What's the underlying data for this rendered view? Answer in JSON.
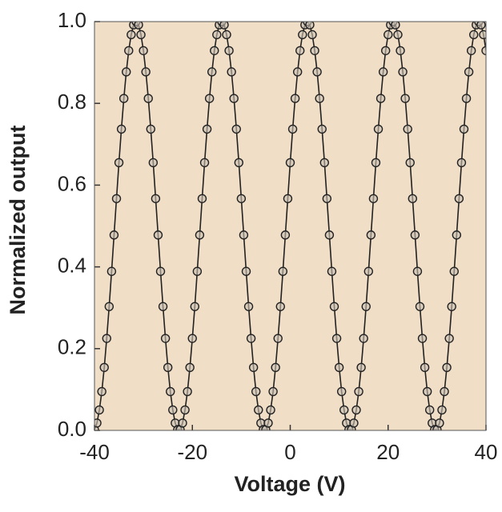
{
  "chart_data": {
    "type": "scatter",
    "xlabel": "Voltage (V)",
    "ylabel": "Normalized output",
    "xlim": [
      -40,
      40
    ],
    "ylim": [
      0,
      1
    ],
    "xticks": [
      -40,
      -20,
      0,
      20,
      40
    ],
    "yticks": [
      {
        "value": 0,
        "label": "0.0"
      },
      0.2,
      0.4,
      0.6,
      0.8,
      {
        "value": 1,
        "label": "1.0"
      }
    ],
    "background": "#f1dec6",
    "series": [
      {
        "color": "#222222",
        "x": [
          -40,
          -39.5,
          -39,
          -38.5,
          -38,
          -37.5,
          -37,
          -36.5,
          -36,
          -35.5,
          -35,
          -34.5,
          -34,
          -33.5,
          -33,
          -32.5,
          -32,
          -31.5,
          -31,
          -30.5,
          -30,
          -29.5,
          -29,
          -28.5,
          -28,
          -27.5,
          -27,
          -26.5,
          -26,
          -25.5,
          -25,
          -24.5,
          -24,
          -23.5,
          -23,
          -22.5,
          -22,
          -21.5,
          -21,
          -20.5,
          -20,
          -19.5,
          -19,
          -18.5,
          -18,
          -17.5,
          -17,
          -16.5,
          -16,
          -15.5,
          -15,
          -14.5,
          -14,
          -13.5,
          -13,
          -12.5,
          -12,
          -11.5,
          -11,
          -10.5,
          -10,
          -9.5,
          -9,
          -8.5,
          -8,
          -7.5,
          -7,
          -6.5,
          -6,
          -5.5,
          -5,
          -4.5,
          -4,
          -3.5,
          -3,
          -2.5,
          -2,
          -1.5,
          -1,
          -0.5,
          0,
          0.5,
          1,
          1.5,
          2,
          2.5,
          3,
          3.5,
          4,
          4.5,
          5,
          5.5,
          6,
          6.5,
          7,
          7.5,
          8,
          8.5,
          9,
          9.5,
          10,
          10.5,
          11,
          11.5,
          12,
          12.5,
          13,
          13.5,
          14,
          14.5,
          15,
          15.5,
          16,
          16.5,
          17,
          17.5,
          18,
          18.5,
          19,
          19.5,
          20,
          20.5,
          21,
          21.5,
          22,
          22.5,
          23,
          23.5,
          24,
          24.5,
          25,
          25.5,
          26,
          26.5,
          27,
          27.5,
          28,
          28.5,
          29,
          29.5,
          30,
          30.5,
          31,
          31.5,
          32,
          32.5,
          33,
          33.5,
          34,
          34.5,
          35,
          35.5,
          36,
          36.5,
          37,
          37.5,
          38,
          38.5,
          39,
          39.5,
          40
        ],
        "values": [
          0.002,
          0.018,
          0.05,
          0.095,
          0.154,
          0.225,
          0.303,
          0.389,
          0.478,
          0.567,
          0.655,
          0.737,
          0.812,
          0.877,
          0.929,
          0.968,
          0.992,
          1,
          0.992,
          0.968,
          0.929,
          0.877,
          0.812,
          0.737,
          0.655,
          0.567,
          0.478,
          0.389,
          0.303,
          0.225,
          0.154,
          0.095,
          0.05,
          0.018,
          0.002,
          0.002,
          0.018,
          0.05,
          0.095,
          0.154,
          0.225,
          0.303,
          0.389,
          0.478,
          0.567,
          0.655,
          0.737,
          0.812,
          0.877,
          0.929,
          0.968,
          0.992,
          1,
          0.992,
          0.968,
          0.929,
          0.877,
          0.812,
          0.737,
          0.655,
          0.567,
          0.478,
          0.389,
          0.303,
          0.225,
          0.154,
          0.095,
          0.05,
          0.018,
          0.002,
          0.002,
          0.018,
          0.05,
          0.095,
          0.154,
          0.225,
          0.303,
          0.389,
          0.478,
          0.567,
          0.655,
          0.737,
          0.812,
          0.877,
          0.929,
          0.968,
          0.992,
          1,
          0.992,
          0.968,
          0.929,
          0.877,
          0.812,
          0.737,
          0.655,
          0.567,
          0.478,
          0.389,
          0.303,
          0.225,
          0.154,
          0.095,
          0.05,
          0.018,
          0.002,
          0.002,
          0.018,
          0.05,
          0.095,
          0.154,
          0.225,
          0.303,
          0.389,
          0.478,
          0.567,
          0.655,
          0.737,
          0.812,
          0.877,
          0.929,
          0.968,
          0.992,
          1,
          0.992,
          0.968,
          0.929,
          0.877,
          0.812,
          0.737,
          0.655,
          0.567,
          0.478,
          0.389,
          0.303,
          0.225,
          0.154,
          0.095,
          0.05,
          0.018,
          0.002,
          0.002,
          0.018,
          0.05,
          0.095,
          0.154,
          0.225,
          0.303,
          0.389,
          0.478,
          0.567,
          0.655,
          0.737,
          0.812,
          0.877,
          0.929,
          0.968,
          0.992,
          1,
          0.992,
          0.968,
          0.929
        ]
      }
    ]
  }
}
